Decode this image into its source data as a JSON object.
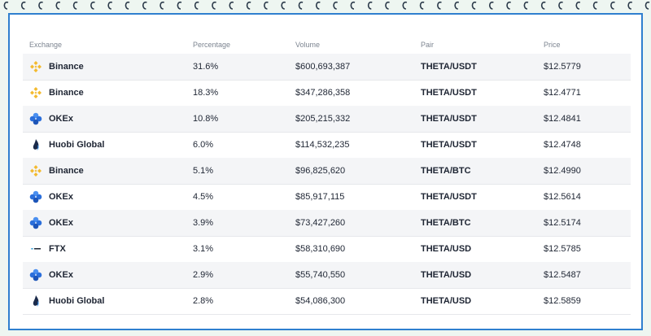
{
  "table": {
    "header": [
      "Exchange",
      "Percentage",
      "Volume",
      "Pair",
      "Price"
    ],
    "rows": [
      [
        "Binance",
        "31.6%",
        "$600,693,387",
        "THETA/USDT",
        "$12.5779"
      ],
      [
        "Binance",
        "18.3%",
        "$347,286,358",
        "THETA/USDT",
        "$12.4771"
      ],
      [
        "OKEx",
        "10.8%",
        "$205,215,332",
        "THETA/USDT",
        "$12.4841"
      ],
      [
        "Huobi Global",
        "6.0%",
        "$114,532,235",
        "THETA/USDT",
        "$12.4748"
      ],
      [
        "Binance",
        "5.1%",
        "$96,825,620",
        "THETA/BTC",
        "$12.4990"
      ],
      [
        "OKEx",
        "4.5%",
        "$85,917,115",
        "THETA/USDT",
        "$12.5614"
      ],
      [
        "OKEx",
        "3.9%",
        "$73,427,260",
        "THETA/BTC",
        "$12.5174"
      ],
      [
        "FTX",
        "3.1%",
        "$58,310,690",
        "THETA/USD",
        "$12.5785"
      ],
      [
        "OKEx",
        "2.9%",
        "$55,740,550",
        "THETA/USD",
        "$12.5487"
      ],
      [
        "Huobi Global",
        "2.8%",
        "$54,086,300",
        "THETA/USD",
        "$12.5859"
      ]
    ]
  }
}
